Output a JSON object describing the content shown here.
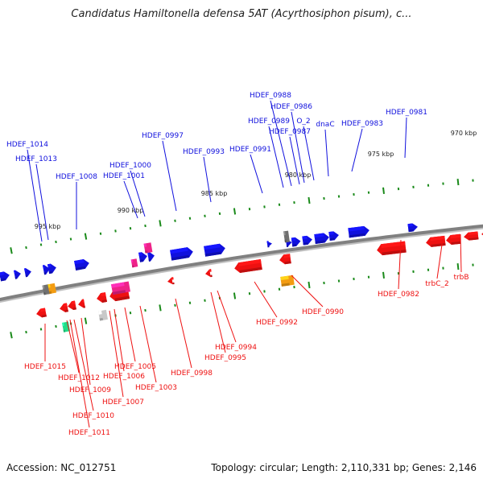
{
  "title": "Candidatus Hamiltonella defensa 5AT (Acyrthosiphon pisum), c...",
  "footer": {
    "accession": "Accession: NC_012751",
    "summary": "Topology: circular; Length: 2,110,331 bp; Genes: 2,146"
  },
  "colors": {
    "forward": "#1010dd",
    "reverse": "#ee1111",
    "backbone": "#808080",
    "tick": "#1a8a1a",
    "magenta": "#ee2288",
    "orange": "#f39c12",
    "gray": "#707070",
    "lightgray": "#c8c8c8",
    "teal": "#22dd88"
  },
  "kbp_labels": [
    "970 kbp",
    "975 kbp",
    "980 kbp",
    "985 kbp",
    "990 kbp",
    "995 kbp"
  ],
  "forward_genes": [
    "HDEF_0981",
    "HDEF_0983",
    "dnaC",
    "O_2",
    "HDEF_0986",
    "HDEF_0987",
    "HDEF_0988",
    "HDEF_0989",
    "HDEF_0991",
    "HDEF_0993",
    "HDEF_0997",
    "HDEF_1000",
    "HDEF_1001",
    "HDEF_1008",
    "HDEF_1013",
    "HDEF_1014"
  ],
  "reverse_genes": [
    "trbB",
    "trbC_2",
    "HDEF_0982",
    "HDEF_0990",
    "HDEF_0992",
    "HDEF_0994",
    "HDEF_0995",
    "HDEF_0998",
    "HDEF_1003",
    "HDEF_1005",
    "HDEF_1006",
    "HDEF_1007",
    "HDEF_1009",
    "HDEF_1010",
    "HDEF_1011",
    "HDEF_1012",
    "HDEF_1015"
  ]
}
